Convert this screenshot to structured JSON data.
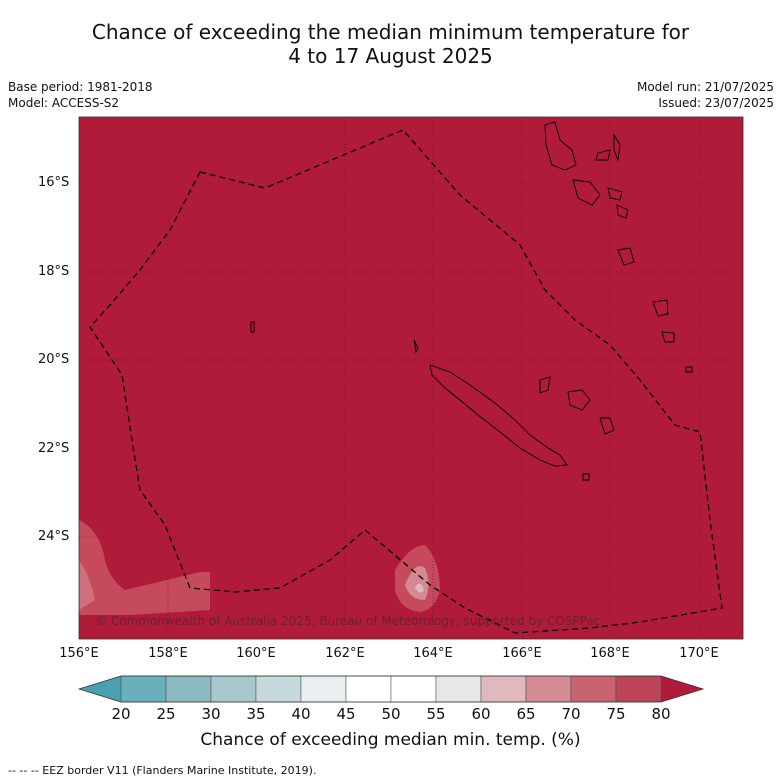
{
  "header": {
    "title_line1": "Chance of exceeding the median minimum temperature for",
    "title_line2": "4 to 17 August 2025"
  },
  "meta": {
    "base_period": "Base period: 1981-2018",
    "model": "Model: ACCESS-S2",
    "model_run": "Model run: 21/07/2025",
    "issued": "Issued: 23/07/2025"
  },
  "map": {
    "latitude_labels": [
      "16°S",
      "18°S",
      "20°S",
      "22°S",
      "24°S"
    ],
    "longitude_labels": [
      "156°E",
      "158°E",
      "160°E",
      "162°E",
      "164°E",
      "166°E",
      "168°E",
      "170°E"
    ],
    "copyright": "© Commonwealth of Australia 2025, Bureau of Meteorology, supported by COSPPac",
    "fill_color": "#b11b3a"
  },
  "colorbar": {
    "ticks": [
      "20",
      "25",
      "30",
      "35",
      "40",
      "45",
      "50",
      "55",
      "60",
      "65",
      "70",
      "75",
      "80"
    ],
    "colors": [
      "#4a9fb0",
      "#6aafbc",
      "#8bbac3",
      "#a9c8cd",
      "#c6d9dd",
      "#eaf0f1",
      "#ffffff",
      "#ffffff",
      "#e7e7e7",
      "#e0b8bd",
      "#d38a93",
      "#c86470",
      "#bd4458",
      "#b11b3a"
    ],
    "label": "Chance of exceeding median min. temp. (%)"
  },
  "footer": {
    "legend": "--  --  -- EEZ border V11 (Flanders Marine Institute, 2019)."
  }
}
